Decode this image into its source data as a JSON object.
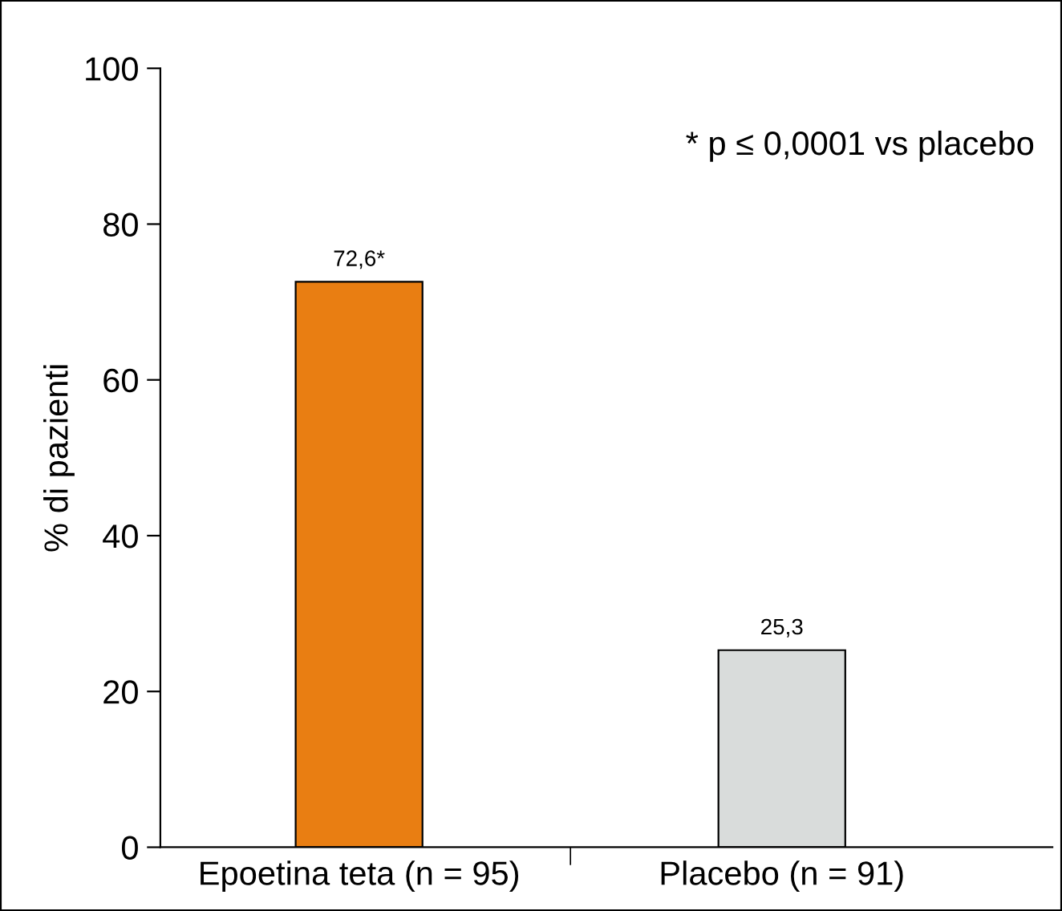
{
  "chart_data": {
    "type": "bar",
    "ylabel": "% di pazienti",
    "categories": [
      "Epoetina teta (n = 95)",
      "Placebo (n = 91)"
    ],
    "values": [
      72.6,
      25.3
    ],
    "colors": [
      "#e97e12",
      "#d9dcdb"
    ],
    "value_labels": [
      "72,6*",
      "25,3"
    ],
    "ylim": [
      0,
      100
    ],
    "yticks": [
      0,
      20,
      40,
      60,
      80,
      100
    ],
    "annotations": [
      "* p ≤ 0,0001 vs placebo"
    ],
    "grid": false,
    "legend": false
  }
}
